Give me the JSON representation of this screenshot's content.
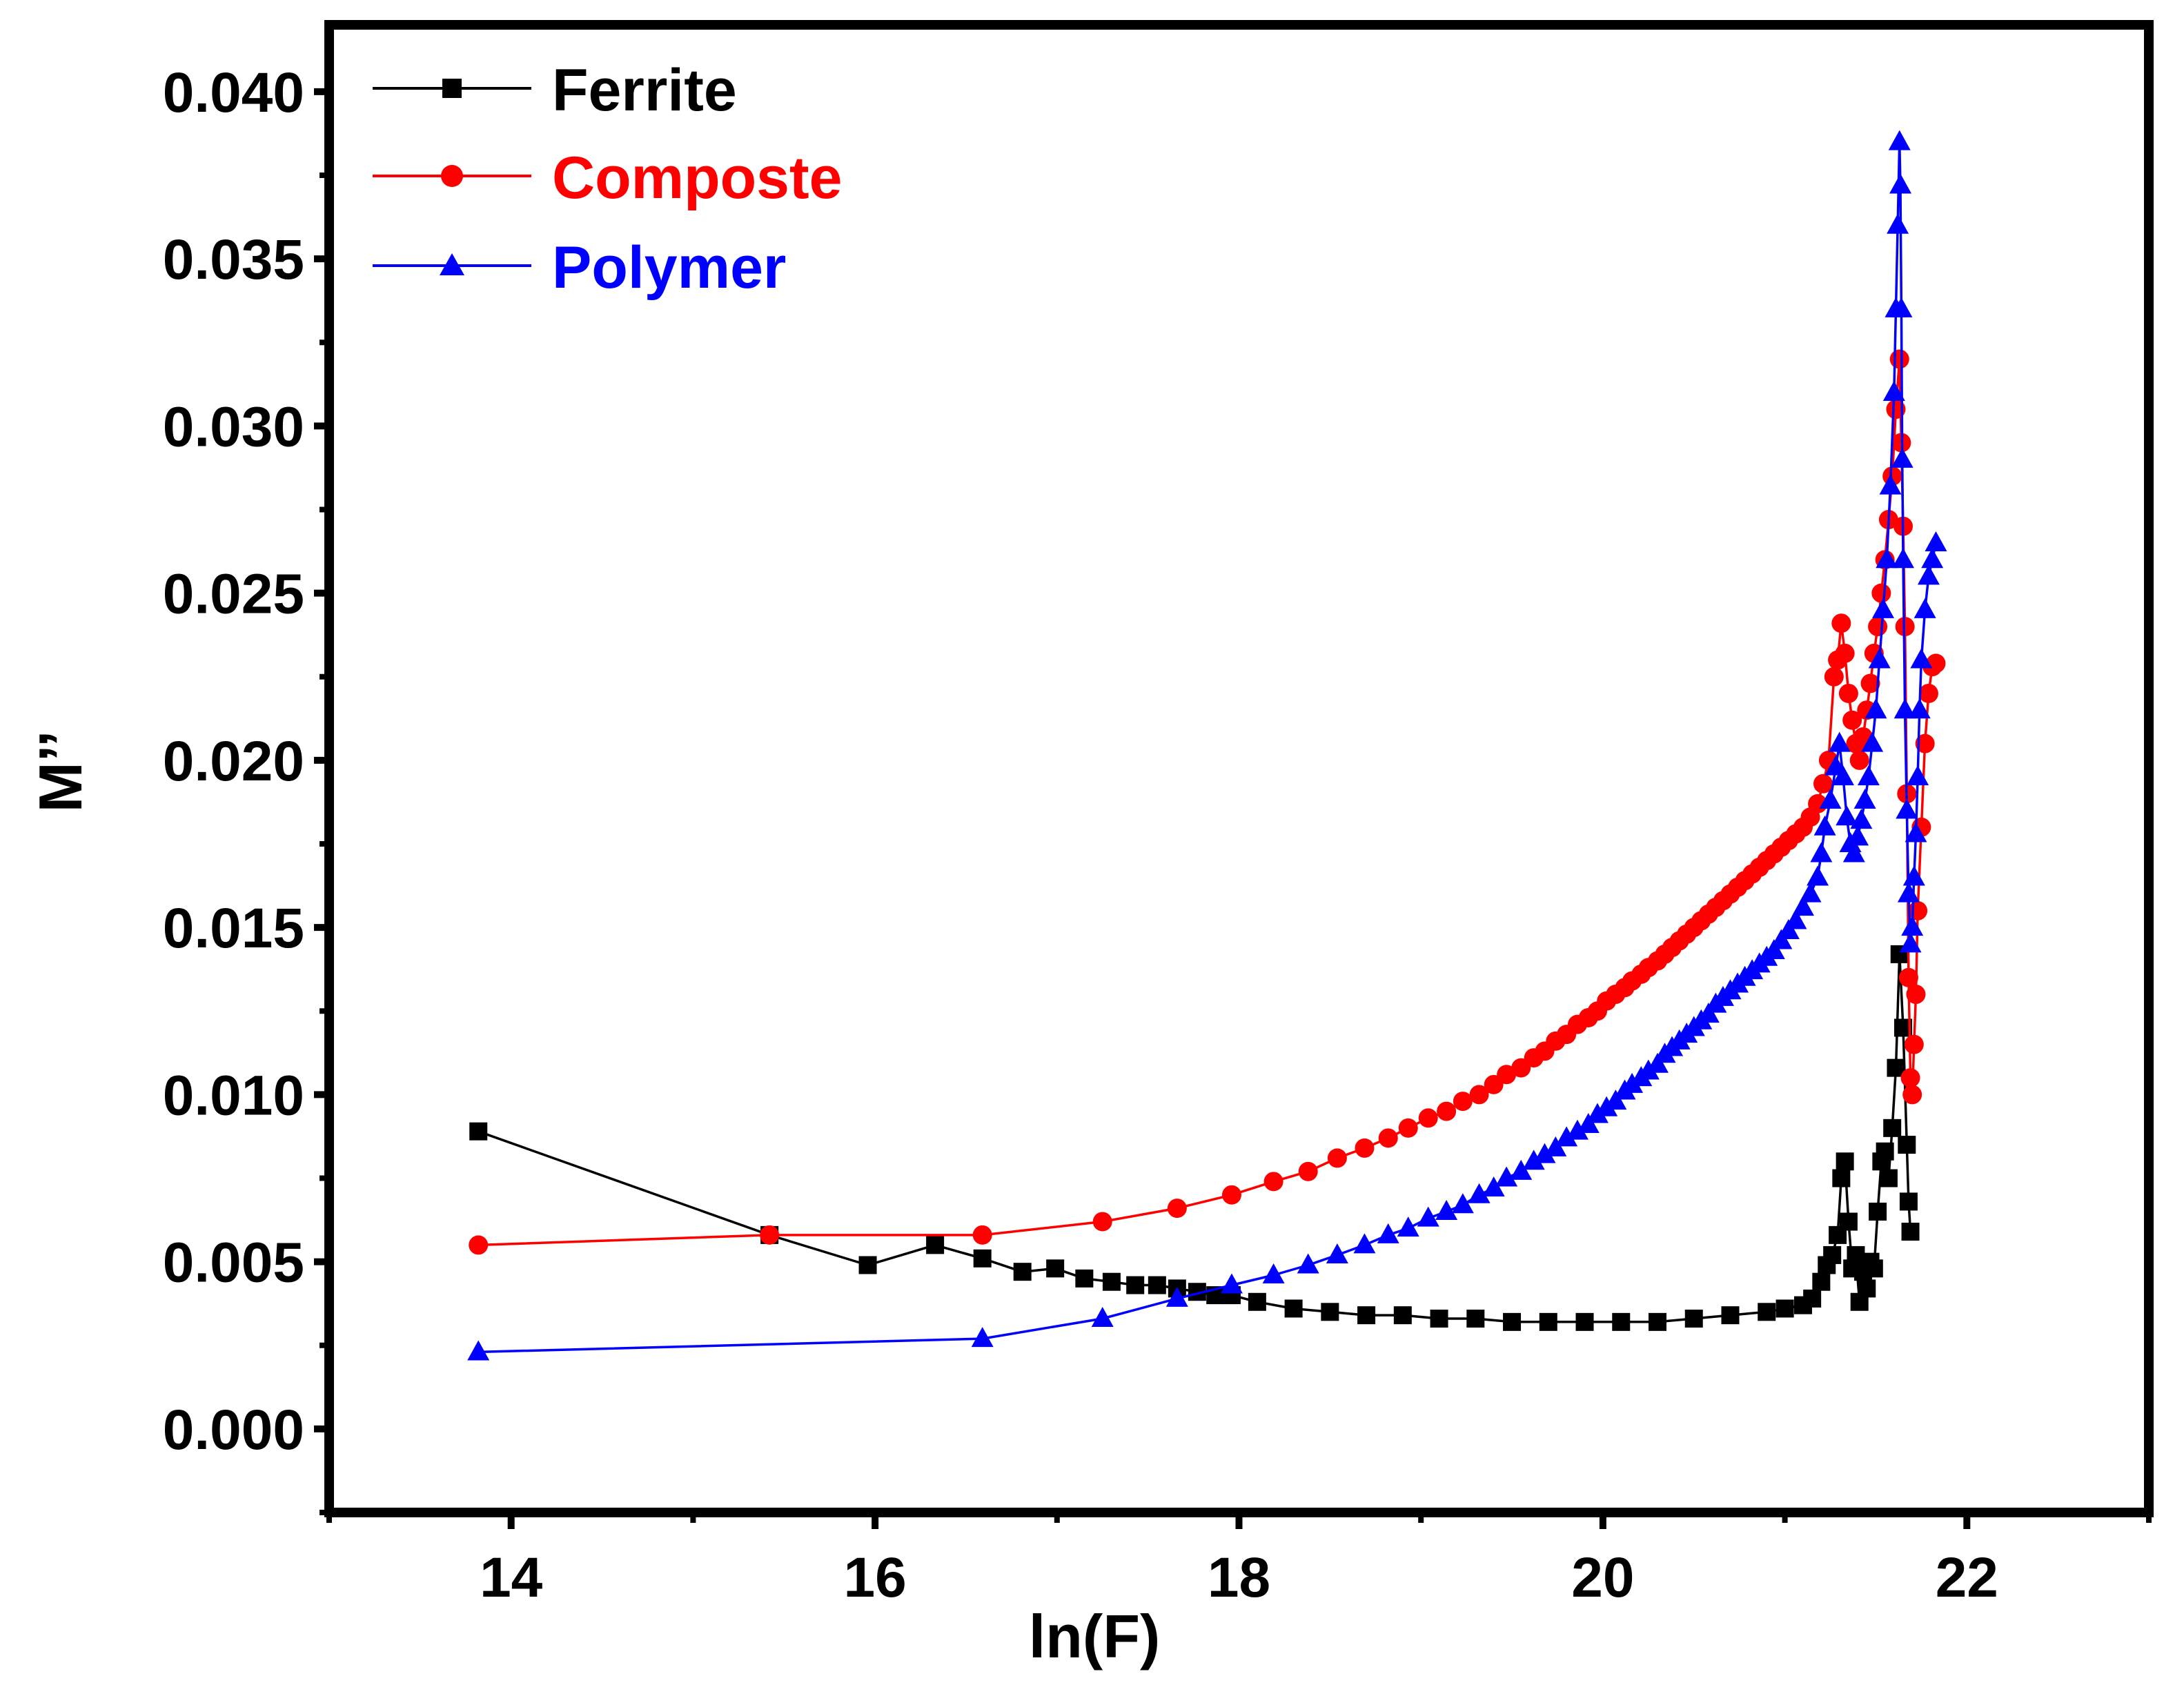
{
  "chart_data": {
    "type": "line",
    "title": "",
    "xlabel": "ln(F)",
    "ylabel": "M’’",
    "xlim": [
      13,
      23
    ],
    "ylim": [
      -0.0025,
      0.042
    ],
    "x_ticks": [
      14,
      16,
      18,
      20,
      22
    ],
    "x_tick_labels": [
      "14",
      "16",
      "18",
      "20",
      "22"
    ],
    "y_ticks": [
      0.0,
      0.005,
      0.01,
      0.015,
      0.02,
      0.025,
      0.03,
      0.035,
      0.04
    ],
    "y_tick_labels": [
      "0.000",
      "0.005",
      "0.010",
      "0.015",
      "0.020",
      "0.025",
      "0.030",
      "0.035",
      "0.040"
    ],
    "legend_position": "top-left",
    "series": [
      {
        "name": "Ferrite",
        "color": "#000000",
        "marker": "square",
        "x": [
          13.82,
          15.42,
          15.96,
          16.33,
          16.59,
          16.81,
          16.99,
          17.15,
          17.3,
          17.43,
          17.55,
          17.66,
          17.77,
          17.87,
          17.96,
          18.1,
          18.3,
          18.5,
          18.7,
          18.9,
          19.1,
          19.3,
          19.5,
          19.7,
          19.9,
          20.1,
          20.3,
          20.5,
          20.7,
          20.9,
          21.0,
          21.1,
          21.15,
          21.2,
          21.23,
          21.26,
          21.29,
          21.31,
          21.33,
          21.35,
          21.37,
          21.39,
          21.41,
          21.43,
          21.45,
          21.47,
          21.49,
          21.51,
          21.53,
          21.55,
          21.57,
          21.59,
          21.61,
          21.63,
          21.65,
          21.67,
          21.68,
          21.69
        ],
        "y": [
          0.0089,
          0.0058,
          0.0049,
          0.0055,
          0.0051,
          0.0047,
          0.0048,
          0.0045,
          0.0044,
          0.0043,
          0.0043,
          0.0042,
          0.0041,
          0.004,
          0.004,
          0.0038,
          0.0036,
          0.0035,
          0.0034,
          0.0034,
          0.0033,
          0.0033,
          0.0032,
          0.0032,
          0.0032,
          0.0032,
          0.0032,
          0.0033,
          0.0034,
          0.0035,
          0.0036,
          0.0037,
          0.0039,
          0.0044,
          0.0049,
          0.0052,
          0.0058,
          0.0075,
          0.008,
          0.0062,
          0.0048,
          0.0052,
          0.0038,
          0.0047,
          0.0042,
          0.005,
          0.0048,
          0.0065,
          0.008,
          0.0083,
          0.0075,
          0.009,
          0.0108,
          0.0142,
          0.012,
          0.0085,
          0.0068,
          0.0059
        ]
      },
      {
        "name": "Composte",
        "color": "#ff0000",
        "marker": "circle",
        "x": [
          13.82,
          15.42,
          16.59,
          17.25,
          17.66,
          17.96,
          18.19,
          18.38,
          18.54,
          18.69,
          18.82,
          18.93,
          19.04,
          19.14,
          19.23,
          19.32,
          19.4,
          19.47,
          19.55,
          19.62,
          19.68,
          19.74,
          19.8,
          19.86,
          19.92,
          19.97,
          20.02,
          20.07,
          20.12,
          20.16,
          20.21,
          20.25,
          20.3,
          20.34,
          20.38,
          20.42,
          20.46,
          20.5,
          20.54,
          20.58,
          20.62,
          20.66,
          20.7,
          20.74,
          20.78,
          20.82,
          20.86,
          20.9,
          20.94,
          20.98,
          21.02,
          21.06,
          21.1,
          21.14,
          21.18,
          21.21,
          21.24,
          21.27,
          21.29,
          21.31,
          21.33,
          21.35,
          21.37,
          21.39,
          21.41,
          21.43,
          21.45,
          21.47,
          21.49,
          21.51,
          21.53,
          21.55,
          21.57,
          21.59,
          21.61,
          21.63,
          21.64,
          21.65,
          21.66,
          21.67,
          21.68,
          21.69,
          21.7,
          21.71,
          21.72,
          21.73,
          21.75,
          21.77,
          21.79,
          21.81,
          21.83
        ],
        "y": [
          0.0055,
          0.0058,
          0.0058,
          0.0062,
          0.0066,
          0.007,
          0.0074,
          0.0077,
          0.0081,
          0.0084,
          0.0087,
          0.009,
          0.0093,
          0.0095,
          0.0098,
          0.01,
          0.0103,
          0.0106,
          0.0108,
          0.0111,
          0.0113,
          0.0116,
          0.0118,
          0.0121,
          0.0123,
          0.0125,
          0.0128,
          0.013,
          0.0132,
          0.0134,
          0.0136,
          0.0138,
          0.014,
          0.0142,
          0.0144,
          0.0146,
          0.0148,
          0.015,
          0.0152,
          0.0154,
          0.0156,
          0.0158,
          0.016,
          0.0162,
          0.0164,
          0.0166,
          0.0168,
          0.017,
          0.0172,
          0.0174,
          0.0176,
          0.0178,
          0.018,
          0.0183,
          0.0187,
          0.0193,
          0.02,
          0.0225,
          0.023,
          0.0241,
          0.0232,
          0.022,
          0.0212,
          0.0205,
          0.02,
          0.0207,
          0.0215,
          0.0223,
          0.0232,
          0.024,
          0.025,
          0.026,
          0.0272,
          0.0285,
          0.0305,
          0.032,
          0.0295,
          0.027,
          0.024,
          0.019,
          0.0135,
          0.0105,
          0.01,
          0.0115,
          0.013,
          0.0155,
          0.018,
          0.0205,
          0.022,
          0.0228,
          0.0229
        ]
      },
      {
        "name": "Polymer",
        "color": "#0000ff",
        "marker": "triangle",
        "x": [
          13.82,
          16.59,
          17.25,
          17.66,
          17.96,
          18.19,
          18.38,
          18.54,
          18.69,
          18.82,
          18.93,
          19.04,
          19.14,
          19.23,
          19.32,
          19.4,
          19.47,
          19.55,
          19.62,
          19.68,
          19.74,
          19.8,
          19.86,
          19.92,
          19.97,
          20.02,
          20.07,
          20.12,
          20.16,
          20.21,
          20.25,
          20.3,
          20.34,
          20.38,
          20.42,
          20.46,
          20.5,
          20.54,
          20.58,
          20.62,
          20.66,
          20.7,
          20.74,
          20.78,
          20.82,
          20.86,
          20.9,
          20.94,
          20.98,
          21.02,
          21.06,
          21.1,
          21.14,
          21.18,
          21.2,
          21.22,
          21.25,
          21.28,
          21.3,
          21.32,
          21.34,
          21.36,
          21.38,
          21.4,
          21.42,
          21.44,
          21.46,
          21.48,
          21.5,
          21.52,
          21.54,
          21.56,
          21.58,
          21.6,
          21.61,
          21.62,
          21.63,
          21.635,
          21.64,
          21.645,
          21.65,
          21.66,
          21.67,
          21.68,
          21.69,
          21.7,
          21.71,
          21.72,
          21.73,
          21.74,
          21.75,
          21.77,
          21.79,
          21.81,
          21.83
        ],
        "y": [
          0.0023,
          0.0027,
          0.0033,
          0.0039,
          0.0043,
          0.0046,
          0.0049,
          0.0052,
          0.0055,
          0.0058,
          0.006,
          0.0063,
          0.0065,
          0.0067,
          0.007,
          0.0072,
          0.0075,
          0.0077,
          0.008,
          0.0082,
          0.0084,
          0.0087,
          0.0089,
          0.0091,
          0.0094,
          0.0096,
          0.0098,
          0.0101,
          0.0103,
          0.0105,
          0.0107,
          0.0109,
          0.0112,
          0.0114,
          0.0116,
          0.0118,
          0.012,
          0.0122,
          0.0124,
          0.0127,
          0.0129,
          0.0131,
          0.0133,
          0.0135,
          0.0137,
          0.0139,
          0.0141,
          0.0143,
          0.0146,
          0.0149,
          0.0152,
          0.0156,
          0.016,
          0.0165,
          0.0172,
          0.018,
          0.0188,
          0.0198,
          0.0205,
          0.0195,
          0.0183,
          0.0175,
          0.0172,
          0.0177,
          0.0182,
          0.0188,
          0.0195,
          0.0205,
          0.0215,
          0.023,
          0.0245,
          0.026,
          0.0282,
          0.031,
          0.0335,
          0.036,
          0.0385,
          0.0372,
          0.0335,
          0.029,
          0.026,
          0.0215,
          0.0185,
          0.016,
          0.0145,
          0.015,
          0.0165,
          0.0178,
          0.0195,
          0.0215,
          0.023,
          0.0245,
          0.0255,
          0.026,
          0.0265
        ]
      }
    ]
  }
}
